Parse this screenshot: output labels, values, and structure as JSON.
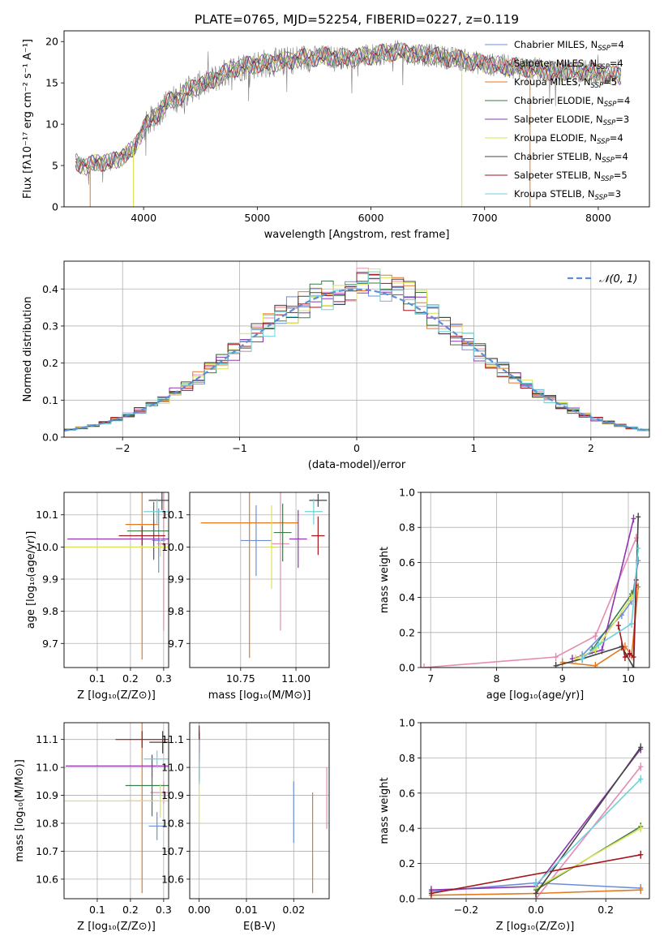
{
  "title": "PLATE=0765, MJD=52254, FIBERID=0227, z=0.119",
  "colors": {
    "Chabrier MILES": "#6a8fd8",
    "Salpeter MILES": "#e48cb2",
    "Kroupa MILES": "#e37a22",
    "Chabrier ELODIE": "#3e7a4a",
    "Salpeter ELODIE": "#8f35b0",
    "Kroupa ELODIE": "#d9e354",
    "Chabrier STELIB": "#454545",
    "Salpeter STELIB": "#a3151c",
    "Kroupa STELIB": "#6ed1da"
  },
  "chart_data": [
    {
      "id": "spectrum",
      "type": "line",
      "xlabel": "wavelength [Angstrom, rest frame]",
      "ylabel": "Flux [fλ10⁻¹⁷ erg cm⁻² s⁻¹ A⁻¹]",
      "xlim": [
        3300,
        8450
      ],
      "ylim": [
        0,
        21.3
      ],
      "xticks": [
        4000,
        5000,
        6000,
        7000,
        8000
      ],
      "yticks": [
        0,
        5,
        10,
        15,
        20
      ],
      "legend_position": "right",
      "legend": [
        {
          "label": "Chabrier MILES, N",
          "sub": "SSP",
          "tail": "=4",
          "color": "#6a8fd8"
        },
        {
          "label": "Salpeter MILES, N",
          "sub": "SSP",
          "tail": "=4",
          "color": "#e48cb2"
        },
        {
          "label": "Kroupa MILES, N",
          "sub": "SSP",
          "tail": "=5",
          "color": "#e37a22"
        },
        {
          "label": "Chabrier ELODIE, N",
          "sub": "SSP",
          "tail": "=4",
          "color": "#3e7a4a"
        },
        {
          "label": "Salpeter ELODIE, N",
          "sub": "SSP",
          "tail": "=3",
          "color": "#8f35b0"
        },
        {
          "label": "Kroupa ELODIE, N",
          "sub": "SSP",
          "tail": "=4",
          "color": "#d9e354"
        },
        {
          "label": "Chabrier STELIB, N",
          "sub": "SSP",
          "tail": "=4",
          "color": "#454545"
        },
        {
          "label": "Salpeter STELIB, N",
          "sub": "SSP",
          "tail": "=5",
          "color": "#a3151c"
        },
        {
          "label": "Kroupa STELIB, N",
          "sub": "SSP",
          "tail": "=3",
          "color": "#6ed1da"
        }
      ],
      "continuum": {
        "x": [
          3400,
          3500,
          3600,
          3700,
          3800,
          3900,
          4000,
          4100,
          4200,
          4300,
          4400,
          4600,
          4800,
          5000,
          5200,
          5400,
          5600,
          5800,
          6000,
          6200,
          6400,
          6600,
          6800,
          7000,
          7200,
          7400,
          7600,
          7800,
          8000,
          8200
        ],
        "y": [
          5.5,
          4.8,
          5.5,
          5.3,
          6.0,
          6.8,
          9.5,
          11.0,
          12.5,
          13.2,
          14.2,
          15.3,
          16.8,
          17.3,
          17.5,
          18.0,
          18.2,
          18.0,
          18.3,
          18.8,
          18.5,
          18.2,
          17.8,
          17.3,
          17.0,
          16.8,
          16.3,
          16.5,
          16.2,
          15.8
        ]
      },
      "dropouts": [
        {
          "x": 3530,
          "color": "#e37a22"
        },
        {
          "x": 3910,
          "color": "#d9e354"
        },
        {
          "x": 6800,
          "color": "#d9e354"
        },
        {
          "x": 7400,
          "color": "#e37a22"
        }
      ]
    },
    {
      "id": "residual-histogram",
      "type": "histogram",
      "xlabel": "(data-model)/error",
      "ylabel": "Normed distribution",
      "xlim": [
        -2.5,
        2.5
      ],
      "ylim": [
        0,
        0.475
      ],
      "xticks": [
        -2,
        -1,
        0,
        1,
        2
      ],
      "yticks": [
        0.0,
        0.1,
        0.2,
        0.3,
        0.4
      ],
      "bin_width": 0.1,
      "gaussian_label": "𝒩(0, 1)",
      "gaussian_color": "#5b8fd6",
      "series_colors": [
        "#6a8fd8",
        "#e48cb2",
        "#e37a22",
        "#3e7a4a",
        "#8f35b0",
        "#d9e354",
        "#454545",
        "#a3151c",
        "#6ed1da"
      ]
    },
    {
      "id": "age-vs-z",
      "type": "errorbar",
      "xlabel": "Z [log₁₀(Z/Z⊙)]",
      "ylabel": "age  [log₁₀(age/yr)]",
      "xlim": [
        0.0,
        0.315
      ],
      "ylim": [
        9.625,
        10.17
      ],
      "xticks": [
        0.1,
        0.2,
        0.3
      ],
      "yticks": [
        9.7,
        9.8,
        9.9,
        10.0,
        10.1
      ],
      "points": [
        {
          "series": "Chabrier MILES",
          "x": 0.285,
          "y": 10.02,
          "xerr": 0.02,
          "yerr": 0.1
        },
        {
          "series": "Salpeter MILES",
          "x": 0.3,
          "y": 10.01,
          "xerr": 0.02,
          "yerr": 0.27
        },
        {
          "series": "Kroupa MILES",
          "x": 0.235,
          "y": 10.07,
          "xerr": 0.05,
          "yerr": 0.42
        },
        {
          "series": "Chabrier ELODIE",
          "x": 0.27,
          "y": 10.05,
          "xerr": 0.08,
          "yerr": 0.09
        },
        {
          "series": "Salpeter ELODIE",
          "x": 0.27,
          "y": 10.025,
          "xerr": 0.26,
          "yerr": 0.06
        },
        {
          "series": "Kroupa ELODIE",
          "x": 0.29,
          "y": 10.0,
          "xerr": 0.29,
          "yerr": 0.03
        },
        {
          "series": "Chabrier STELIB",
          "x": 0.295,
          "y": 10.145,
          "xerr": 0.04,
          "yerr": 0.03
        },
        {
          "series": "Salpeter STELIB",
          "x": 0.235,
          "y": 10.035,
          "xerr": 0.07,
          "yerr": 0.03
        },
        {
          "series": "Kroupa STELIB",
          "x": 0.28,
          "y": 10.11,
          "xerr": 0.04,
          "yerr": 0.04
        }
      ]
    },
    {
      "id": "age-vs-mass",
      "type": "errorbar",
      "xlabel": "mass [log₁₀(M/M⊙)]",
      "ylabel": "",
      "xlim": [
        10.52,
        11.15
      ],
      "ylim": [
        9.625,
        10.17
      ],
      "xticks": [
        10.75,
        11.0
      ],
      "yticks": [
        9.7,
        9.8,
        9.9,
        10.0,
        10.1
      ],
      "points": [
        {
          "series": "Chabrier MILES",
          "x": 10.82,
          "y": 10.02,
          "xerr": 0.07,
          "yerr": 0.11
        },
        {
          "series": "Salpeter MILES",
          "x": 10.93,
          "y": 10.01,
          "xerr": 0.04,
          "yerr": 0.27
        },
        {
          "series": "Kroupa MILES",
          "x": 10.79,
          "y": 10.075,
          "xerr": 0.22,
          "yerr": 0.42
        },
        {
          "series": "Chabrier ELODIE",
          "x": 10.94,
          "y": 10.045,
          "xerr": 0.04,
          "yerr": 0.09
        },
        {
          "series": "Salpeter ELODIE",
          "x": 11.01,
          "y": 10.025,
          "xerr": 0.04,
          "yerr": 0.09
        },
        {
          "series": "Kroupa ELODIE",
          "x": 10.89,
          "y": 10.0,
          "xerr": 0.02,
          "yerr": 0.13
        },
        {
          "series": "Chabrier STELIB",
          "x": 11.1,
          "y": 10.145,
          "xerr": 0.04,
          "yerr": 0.02
        },
        {
          "series": "Salpeter STELIB",
          "x": 11.1,
          "y": 10.035,
          "xerr": 0.03,
          "yerr": 0.06
        },
        {
          "series": "Kroupa STELIB",
          "x": 11.08,
          "y": 10.11,
          "xerr": 0.04,
          "yerr": 0.04
        }
      ]
    },
    {
      "id": "mass-weight-vs-age",
      "type": "line",
      "xlabel": "age  [log₁₀(age/yr)]",
      "ylabel": "mass weight",
      "xlim": [
        6.85,
        10.32
      ],
      "ylim": [
        0.0,
        1.0
      ],
      "xticks": [
        7,
        8,
        9,
        10
      ],
      "yticks": [
        0.0,
        0.2,
        0.4,
        0.6,
        0.8,
        1.0
      ],
      "series": [
        {
          "name": "Chabrier MILES",
          "x": [
            9.3,
            9.9,
            10.05,
            10.15
          ],
          "y": [
            0.07,
            0.3,
            0.38,
            0.61
          ]
        },
        {
          "name": "Salpeter MILES",
          "x": [
            6.9,
            8.9,
            9.5,
            10.12
          ],
          "y": [
            0.0,
            0.06,
            0.18,
            0.74
          ]
        },
        {
          "name": "Kroupa MILES",
          "x": [
            9.0,
            9.5,
            9.95,
            10.05,
            10.15
          ],
          "y": [
            0.03,
            0.01,
            0.12,
            0.07,
            0.46
          ]
        },
        {
          "name": "Chabrier ELODIE",
          "x": [
            9.45,
            10.05,
            10.12
          ],
          "y": [
            0.1,
            0.42,
            0.47
          ]
        },
        {
          "name": "Salpeter ELODIE",
          "x": [
            9.15,
            9.6,
            10.08
          ],
          "y": [
            0.05,
            0.1,
            0.85
          ]
        },
        {
          "name": "Kroupa ELODIE",
          "x": [
            9.2,
            9.5,
            10.05,
            10.12
          ],
          "y": [
            0.05,
            0.1,
            0.4,
            0.44
          ]
        },
        {
          "name": "Chabrier STELIB",
          "x": [
            8.9,
            9.3,
            9.9,
            10.08,
            10.15
          ],
          "y": [
            0.01,
            0.05,
            0.12,
            0.0,
            0.86
          ]
        },
        {
          "name": "Salpeter STELIB",
          "x": [
            9.85,
            9.95,
            10.02,
            10.08,
            10.12
          ],
          "y": [
            0.24,
            0.06,
            0.08,
            0.06,
            0.5
          ]
        },
        {
          "name": "Kroupa STELIB",
          "x": [
            9.3,
            9.55,
            10.05,
            10.15
          ],
          "y": [
            0.05,
            0.13,
            0.25,
            0.68
          ]
        }
      ]
    },
    {
      "id": "mass-vs-z",
      "type": "errorbar",
      "xlabel": "Z [log₁₀(Z/Z⊙)]",
      "ylabel": "mass [log₁₀(M/M⊙)]",
      "xlim": [
        0.0,
        0.315
      ],
      "ylim": [
        10.53,
        11.16
      ],
      "xticks": [
        0.1,
        0.2,
        0.3
      ],
      "yticks": [
        10.6,
        10.7,
        10.8,
        10.9,
        11.0,
        11.1
      ],
      "points": [
        {
          "series": "Chabrier MILES",
          "x": 0.28,
          "y": 10.79,
          "xerr": 0.025,
          "yerr": 0.05
        },
        {
          "series": "Salpeter MILES",
          "x": 0.3,
          "y": 10.91,
          "xerr": 0.04,
          "yerr": 0.04
        },
        {
          "series": "Kroupa MILES",
          "x": 0.235,
          "y": 10.88,
          "xerr": 0.05,
          "yerr": 0.33
        },
        {
          "series": "Chabrier ELODIE",
          "x": 0.265,
          "y": 10.935,
          "xerr": 0.08,
          "yerr": 0.11
        },
        {
          "series": "Salpeter ELODIE",
          "x": 0.265,
          "y": 11.005,
          "xerr": 0.26,
          "yerr": 0.04
        },
        {
          "series": "Kroupa ELODIE",
          "x": 0.29,
          "y": 10.88,
          "xerr": 0.29,
          "yerr": 0.06
        },
        {
          "series": "Chabrier STELIB",
          "x": 0.297,
          "y": 11.09,
          "xerr": 0.04,
          "yerr": 0.04
        },
        {
          "series": "Salpeter STELIB",
          "x": 0.235,
          "y": 11.1,
          "xerr": 0.08,
          "yerr": 0.03
        },
        {
          "series": "Kroupa STELIB",
          "x": 0.28,
          "y": 11.03,
          "xerr": 0.04,
          "yerr": 0.03
        }
      ]
    },
    {
      "id": "mass-vs-ebv",
      "type": "errorbar",
      "xlabel": "E(B-V)",
      "ylabel": "",
      "xlim": [
        -0.002,
        0.0275
      ],
      "ylim": [
        10.53,
        11.16
      ],
      "xticks": [
        0.0,
        0.01,
        0.02
      ],
      "yticks": [
        10.6,
        10.7,
        10.8,
        10.9,
        11.0,
        11.1
      ],
      "points": [
        {
          "series": "Chabrier MILES",
          "x": 0.02,
          "y": 10.84,
          "xerr": 0.0,
          "yerr": 0.11
        },
        {
          "series": "Salpeter MILES",
          "x": 0.027,
          "y": 10.89,
          "xerr": 0.0,
          "yerr": 0.11
        },
        {
          "series": "Kroupa MILES",
          "x": 0.024,
          "y": 10.73,
          "xerr": 0.0,
          "yerr": 0.18
        },
        {
          "series": "Chabrier ELODIE",
          "x": 0.0,
          "y": 11.03,
          "xerr": 0.0,
          "yerr": 0.08
        },
        {
          "series": "Salpeter ELODIE",
          "x": 0.0,
          "y": 11.07,
          "xerr": 0.0,
          "yerr": 0.05
        },
        {
          "series": "Kroupa ELODIE",
          "x": 0.0,
          "y": 10.87,
          "xerr": 0.0,
          "yerr": 0.08
        },
        {
          "series": "Chabrier STELIB",
          "x": 0.0,
          "y": 11.1,
          "xerr": 0.0,
          "yerr": 0.03
        },
        {
          "series": "Salpeter STELIB",
          "x": 0.0,
          "y": 11.1,
          "xerr": 0.0,
          "yerr": 0.05
        },
        {
          "series": "Kroupa STELIB",
          "x": 0.0,
          "y": 11.02,
          "xerr": 0.0,
          "yerr": 0.08
        }
      ]
    },
    {
      "id": "mass-weight-vs-z",
      "type": "line",
      "xlabel": "Z [log₁₀(Z/Z⊙)]",
      "ylabel": "mass weight",
      "xlim": [
        -0.33,
        0.325
      ],
      "ylim": [
        0.0,
        1.0
      ],
      "xticks": [
        -0.2,
        0.0,
        0.2
      ],
      "yticks": [
        0.0,
        0.2,
        0.4,
        0.6,
        0.8,
        1.0
      ],
      "series": [
        {
          "name": "Chabrier MILES",
          "x": [
            -0.3,
            0.0,
            0.3
          ],
          "y": [
            0.04,
            0.09,
            0.06
          ]
        },
        {
          "name": "Salpeter MILES",
          "x": [
            0.0,
            0.3
          ],
          "y": [
            0.0,
            0.75
          ]
        },
        {
          "name": "Kroupa MILES",
          "x": [
            -0.3,
            0.0,
            0.3
          ],
          "y": [
            0.02,
            0.03,
            0.05
          ]
        },
        {
          "name": "Chabrier ELODIE",
          "x": [
            0.0,
            0.3
          ],
          "y": [
            0.05,
            0.41
          ]
        },
        {
          "name": "Salpeter ELODIE",
          "x": [
            -0.3,
            0.0,
            0.3
          ],
          "y": [
            0.05,
            0.07,
            0.85
          ]
        },
        {
          "name": "Kroupa ELODIE",
          "x": [
            0.0,
            0.3
          ],
          "y": [
            0.06,
            0.4
          ]
        },
        {
          "name": "Chabrier STELIB",
          "x": [
            0.0,
            0.3
          ],
          "y": [
            0.03,
            0.86
          ]
        },
        {
          "name": "Salpeter STELIB",
          "x": [
            -0.3,
            0.3
          ],
          "y": [
            0.03,
            0.25
          ]
        },
        {
          "name": "Kroupa STELIB",
          "x": [
            0.0,
            0.3
          ],
          "y": [
            0.08,
            0.68
          ]
        }
      ]
    }
  ]
}
